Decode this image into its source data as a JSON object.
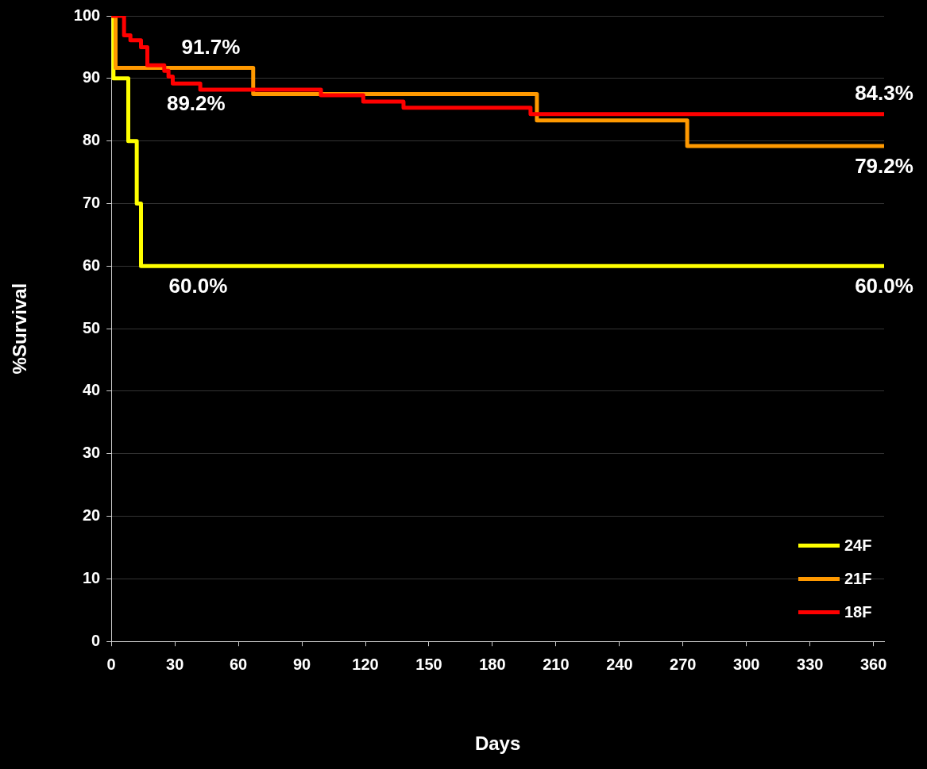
{
  "chart_data": {
    "type": "step",
    "xlabel": "Days",
    "ylabel": "%Survival",
    "xlim": [
      0,
      365
    ],
    "xticks": [
      0,
      30,
      60,
      90,
      120,
      150,
      180,
      210,
      240,
      270,
      300,
      330,
      360
    ],
    "ylim": [
      0,
      100
    ],
    "yticks": [
      0,
      10,
      20,
      30,
      40,
      50,
      60,
      70,
      80,
      90,
      100
    ],
    "grid": "y",
    "legend": "bottom right",
    "marker": "none",
    "series": [
      {
        "name": "24F",
        "color": "#ffff00",
        "x": [
          0,
          1,
          8,
          12,
          14,
          365
        ],
        "values": [
          100,
          90,
          80,
          70,
          60,
          60
        ]
      },
      {
        "name": "21F",
        "color": "#ff9900",
        "x": [
          0,
          2,
          67,
          201,
          272,
          365
        ],
        "values": [
          100,
          91.7,
          87.5,
          83.3,
          79.2,
          79.2
        ]
      },
      {
        "name": "18F",
        "color": "#ff0000",
        "x": [
          0,
          6,
          9,
          14,
          17,
          25,
          27,
          29,
          42,
          99,
          119,
          138,
          198,
          365
        ],
        "values": [
          100,
          96.9,
          96.1,
          95.0,
          92.1,
          91.2,
          90.3,
          89.2,
          88.2,
          87.3,
          86.3,
          85.3,
          84.3,
          84.3
        ]
      }
    ],
    "annotations": [
      {
        "text": "91.7%",
        "x": 47,
        "y": 91.7
      },
      {
        "text": "89.2%",
        "x": 40,
        "y": 89.2
      },
      {
        "text": "60.0%",
        "x": 41,
        "y": 60
      },
      {
        "text": "84.3%",
        "x": 365,
        "y": 84.3
      },
      {
        "text": "79.2%",
        "x": 365,
        "y": 79.2
      },
      {
        "text": "60.0%",
        "x": 365,
        "y": 60
      }
    ]
  }
}
